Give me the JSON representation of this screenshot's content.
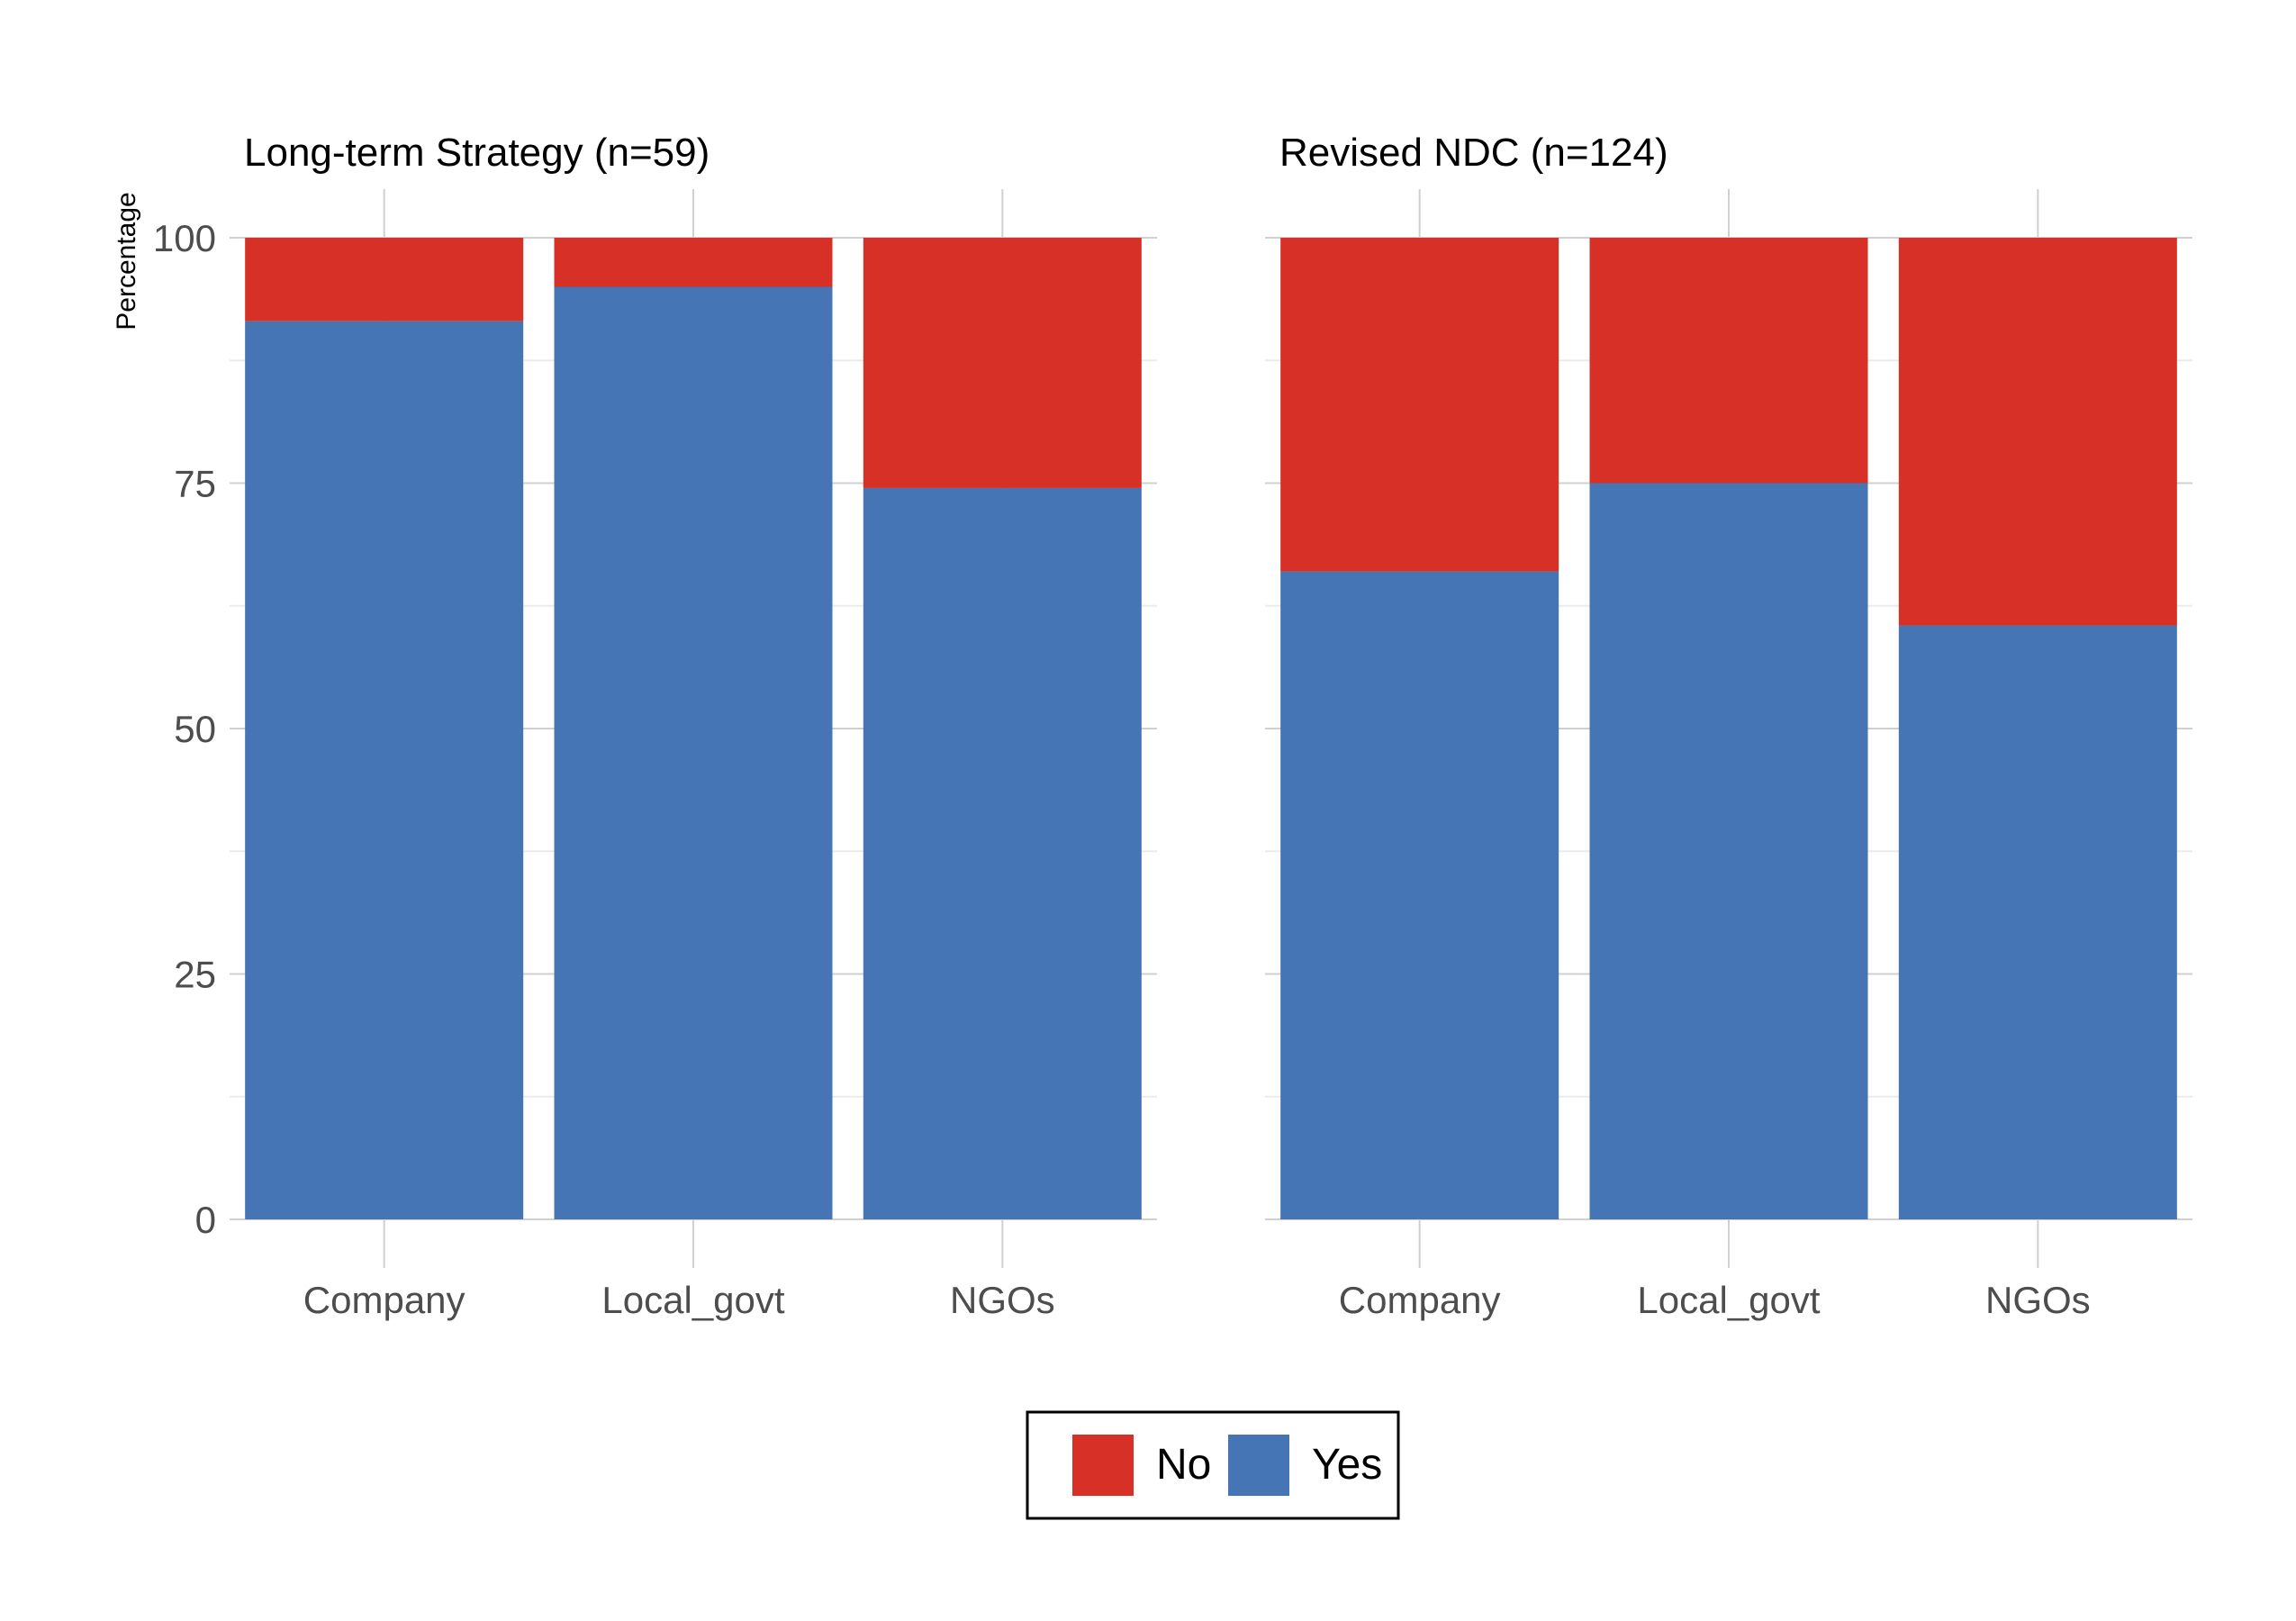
{
  "chart_data": {
    "type": "bar",
    "stacked": true,
    "ylabel": "Percentage",
    "ylim": [
      0,
      100
    ],
    "yticks": [
      0,
      25,
      50,
      75,
      100
    ],
    "grid": true,
    "legend": {
      "position": "bottom-center",
      "entries": [
        {
          "name": "No",
          "color": "#d73027"
        },
        {
          "name": "Yes",
          "color": "#4575b4"
        }
      ]
    },
    "panels": [
      {
        "title": "Long-term Strategy (n=59)",
        "categories": [
          "Company",
          "Local_govt",
          "NGOs"
        ],
        "series": [
          {
            "name": "Yes",
            "color": "#4575b4",
            "values": [
              91.5,
              95.0,
              74.5
            ]
          },
          {
            "name": "No",
            "color": "#d73027",
            "values": [
              8.5,
              5.0,
              25.5
            ]
          }
        ]
      },
      {
        "title": "Revised NDC (n=124)",
        "categories": [
          "Company",
          "Local_govt",
          "NGOs"
        ],
        "series": [
          {
            "name": "Yes",
            "color": "#4575b4",
            "values": [
              66.0,
              75.0,
              60.5
            ]
          },
          {
            "name": "No",
            "color": "#d73027",
            "values": [
              34.0,
              25.0,
              39.5
            ]
          }
        ]
      }
    ]
  }
}
